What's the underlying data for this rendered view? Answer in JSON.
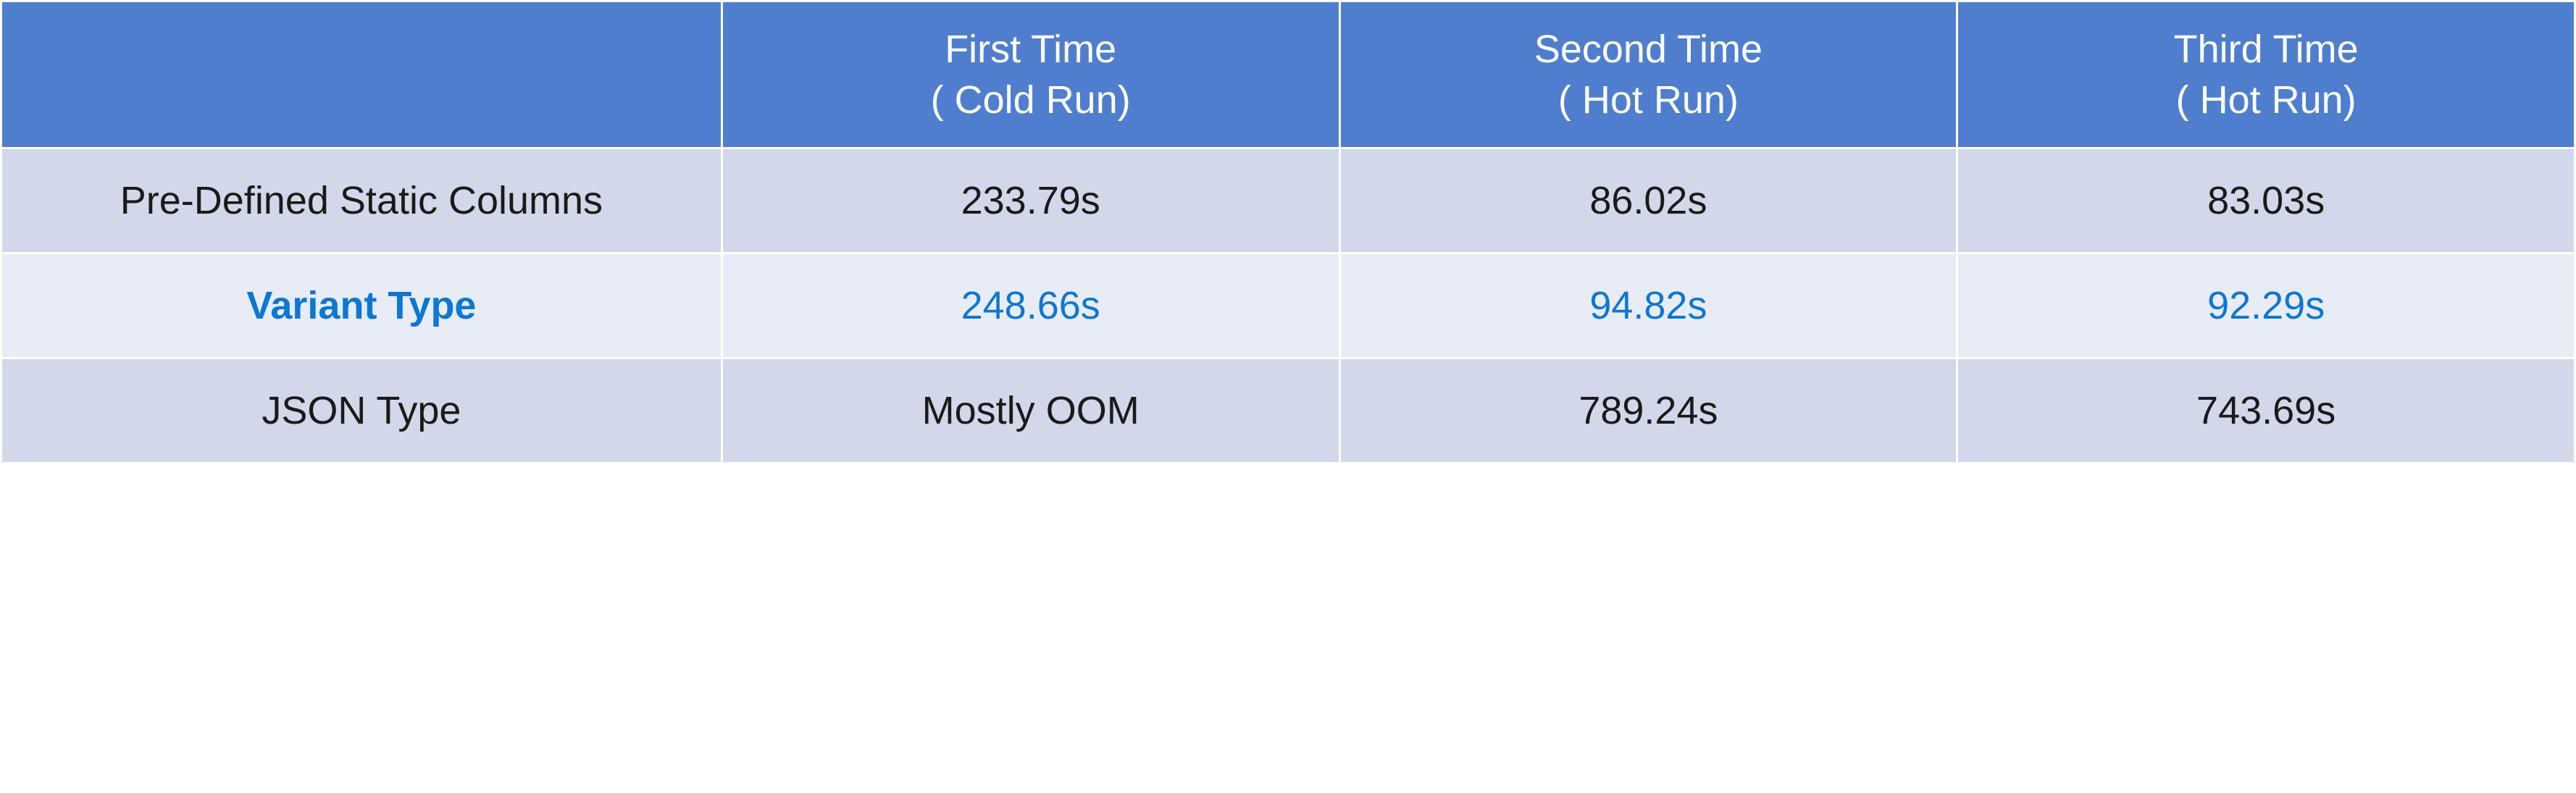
{
  "table": {
    "type": "table",
    "columns": [
      {
        "label": "",
        "subtitle": ""
      },
      {
        "label": "First Time",
        "subtitle": "( Cold Run)"
      },
      {
        "label": "Second Time",
        "subtitle": "( Hot Run)"
      },
      {
        "label": "Third Time",
        "subtitle": "( Hot Run)"
      }
    ],
    "rows": [
      {
        "label": "Pre-Defined Static Columns",
        "cells": [
          "233.79s",
          "86.02s",
          "83.03s"
        ],
        "highlight": false,
        "bg": "#d2d8ea"
      },
      {
        "label": "Variant Type",
        "cells": [
          "248.66s",
          "94.82s",
          "92.29s"
        ],
        "highlight": true,
        "bg": "#e8ecf7"
      },
      {
        "label": "JSON Type",
        "cells": [
          "Mostly OOM",
          "789.24s",
          "743.69s"
        ],
        "highlight": false,
        "bg": "#d2d8ea"
      }
    ],
    "header_bg": "#4f7ecf",
    "header_text_color": "#ffffff",
    "body_font_size": 54,
    "header_font_size": 54,
    "highlight_color": "#0b77d6",
    "normal_text_color": "#1a1a1a",
    "border_color": "#ffffff",
    "border_width": 3,
    "bottom_border_color": "#000000"
  }
}
